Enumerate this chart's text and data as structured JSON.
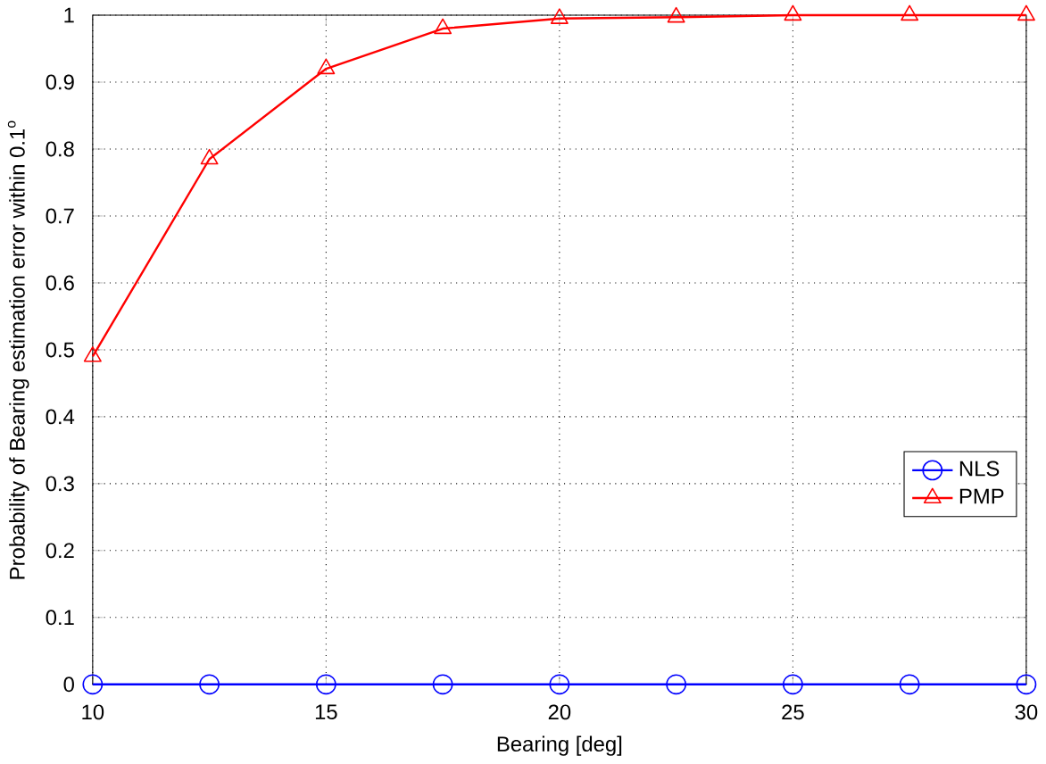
{
  "chart_data": {
    "type": "line",
    "xlabel": "Bearing [deg]",
    "ylabel": "Probability of Bearing estimation error within 0.1$^{o}$",
    "x": [
      10,
      12.5,
      15,
      17.5,
      20,
      22.5,
      25,
      27.5,
      30
    ],
    "series": [
      {
        "name": "NLS",
        "color": "#0000ff",
        "marker": "circle",
        "values": [
          0,
          0,
          0,
          0,
          0,
          0,
          0,
          0,
          0
        ]
      },
      {
        "name": "PMP",
        "color": "#ff0000",
        "marker": "triangle",
        "values": [
          0.49,
          0.785,
          0.92,
          0.98,
          0.995,
          0.997,
          1,
          1,
          1
        ]
      }
    ],
    "xlim": [
      10,
      30
    ],
    "ylim": [
      0,
      1
    ],
    "xticks": [
      10,
      15,
      20,
      25,
      30
    ],
    "yticks": [
      0,
      0.1,
      0.2,
      0.3,
      0.4,
      0.5,
      0.6,
      0.7,
      0.8,
      0.9,
      1
    ],
    "grid": true,
    "legend": "right",
    "line_style": "solid"
  }
}
